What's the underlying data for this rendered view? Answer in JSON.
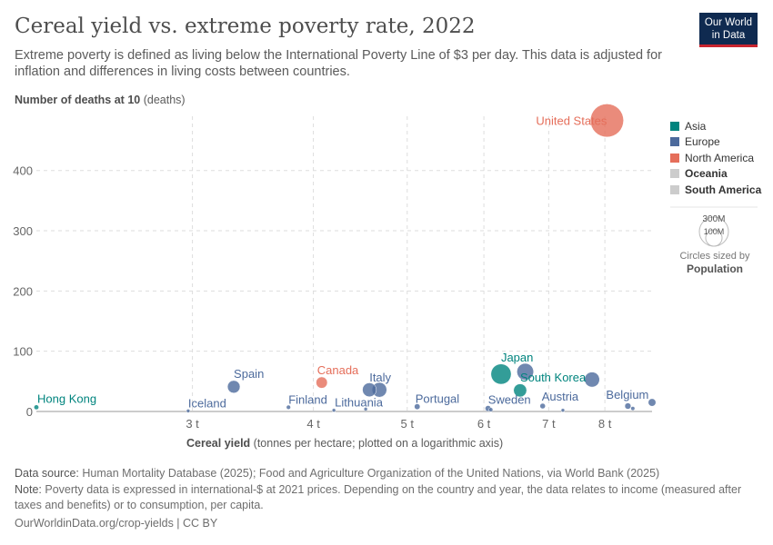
{
  "header": {
    "title": "Cereal yield vs. extreme poverty rate, 2022",
    "subtitle": "Extreme poverty is defined as living below the International Poverty Line of $3 per day. This data is adjusted for inflation and differences in living costs between countries.",
    "logo": "Our World in Data"
  },
  "chart_data": {
    "type": "scatter",
    "title": "Cereal yield vs. extreme poverty rate, 2022",
    "ylabel_bold": "Number of deaths at 10",
    "ylabel_unit": "(deaths)",
    "xlabel_bold": "Cereal yield",
    "xlabel_unit": "(tonnes per hectare; plotted on a logarithmic axis)",
    "x_scale": "log",
    "xlim": [
      2.07,
      8.95
    ],
    "ylim": [
      0,
      490
    ],
    "x_ticks": [
      {
        "v": 3,
        "label": "3 t"
      },
      {
        "v": 4,
        "label": "4 t"
      },
      {
        "v": 5,
        "label": "5 t"
      },
      {
        "v": 6,
        "label": "6 t"
      },
      {
        "v": 7,
        "label": "7 t"
      },
      {
        "v": 8,
        "label": "8 t"
      }
    ],
    "y_ticks": [
      {
        "v": 0,
        "label": "0"
      },
      {
        "v": 100,
        "label": "100"
      },
      {
        "v": 200,
        "label": "200"
      },
      {
        "v": 300,
        "label": "300"
      },
      {
        "v": 400,
        "label": "400"
      }
    ],
    "grid": true,
    "colors": {
      "Asia": "#00847e",
      "Europe": "#4c6a9c",
      "North America": "#e56e5a",
      "Oceania": "#cccccc",
      "South America": "#cccccc"
    },
    "legend": {
      "placement": "right",
      "items": [
        {
          "name": "Asia",
          "bold": false
        },
        {
          "name": "Europe",
          "bold": false
        },
        {
          "name": "North America",
          "bold": false
        },
        {
          "name": "Oceania",
          "bold": true
        },
        {
          "name": "South America",
          "bold": true
        }
      ]
    },
    "size_legend": {
      "title": "Circles sized by",
      "variable": "Population",
      "refs": [
        "300M",
        "100M"
      ]
    },
    "points": [
      {
        "label": "Hong Kong",
        "x": 2.07,
        "y": 7,
        "pop": 7,
        "continent": "Asia"
      },
      {
        "label": "Iceland",
        "x": 2.97,
        "y": 1,
        "pop": 0.4,
        "continent": "Europe"
      },
      {
        "label": "Spain",
        "x": 3.31,
        "y": 41,
        "pop": 48,
        "continent": "Europe"
      },
      {
        "label": "Finland",
        "x": 3.77,
        "y": 7,
        "pop": 5.5,
        "continent": "Europe"
      },
      {
        "label": "Canada",
        "x": 4.08,
        "y": 48,
        "pop": 39,
        "continent": "North America"
      },
      {
        "label": "Lithuania",
        "x": 4.2,
        "y": 2,
        "pop": 2.8,
        "continent": "Europe"
      },
      {
        "label": "",
        "x": 4.53,
        "y": 4,
        "pop": 2,
        "continent": "Europe"
      },
      {
        "label": "Italy",
        "x": 4.57,
        "y": 36,
        "pop": 59,
        "continent": "Europe"
      },
      {
        "label": "",
        "x": 4.68,
        "y": 36,
        "pop": 66,
        "continent": "Europe"
      },
      {
        "label": "Portugal",
        "x": 5.12,
        "y": 8,
        "pop": 10,
        "continent": "Europe"
      },
      {
        "label": "Sweden",
        "x": 6.06,
        "y": 5,
        "pop": 10.5,
        "continent": "Europe"
      },
      {
        "label": "",
        "x": 6.1,
        "y": 3,
        "pop": 5,
        "continent": "Europe"
      },
      {
        "label": "Japan",
        "x": 6.25,
        "y": 62,
        "pop": 124,
        "continent": "Asia"
      },
      {
        "label": "",
        "x": 6.62,
        "y": 66,
        "pop": 84,
        "continent": "Europe"
      },
      {
        "label": "South Korea",
        "x": 6.54,
        "y": 35,
        "pop": 52,
        "continent": "Asia"
      },
      {
        "label": "Austria",
        "x": 6.9,
        "y": 9,
        "pop": 9,
        "continent": "Europe"
      },
      {
        "label": "",
        "x": 7.24,
        "y": 2,
        "pop": 2,
        "continent": "Europe"
      },
      {
        "label": "",
        "x": 7.76,
        "y": 53,
        "pop": 68,
        "continent": "Europe"
      },
      {
        "label": "Belgium",
        "x": 8.45,
        "y": 9,
        "pop": 11.7,
        "continent": "Europe"
      },
      {
        "label": "",
        "x": 8.55,
        "y": 5,
        "pop": 5,
        "continent": "Europe"
      },
      {
        "label": "",
        "x": 8.95,
        "y": 15,
        "pop": 17.7,
        "continent": "Europe"
      },
      {
        "label": "United States",
        "x": 8.04,
        "y": 483,
        "pop": 333,
        "continent": "North America"
      }
    ]
  },
  "footer": {
    "source_label": "Data source:",
    "source": "Human Mortality Database (2025); Food and Agriculture Organization of the United Nations, via World Bank (2025)",
    "note_label": "Note:",
    "note": "Poverty data is expressed in international-$ at 2021 prices. Depending on the country and year, the data relates to income (measured after taxes and benefits) or to consumption, per capita.",
    "url": "OurWorldinData.org/crop-yields | CC BY"
  }
}
